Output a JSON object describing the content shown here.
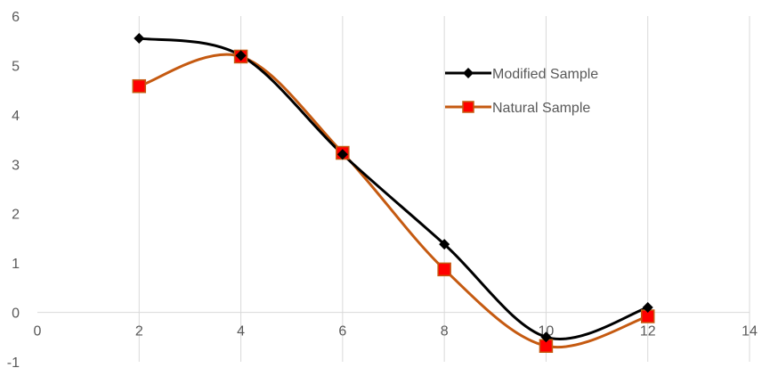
{
  "chart_data": {
    "type": "line",
    "smooth": true,
    "xlim": [
      0,
      14
    ],
    "ylim": [
      -1,
      6
    ],
    "xticks": [
      0,
      2,
      4,
      6,
      8,
      10,
      12,
      14
    ],
    "yticks": [
      -1,
      0,
      1,
      2,
      3,
      4,
      5,
      6
    ],
    "grid": "vertical",
    "legend_position": "top-right",
    "series": [
      {
        "name": "Modified Sample",
        "color": "#000000",
        "marker": "diamond",
        "x": [
          2,
          4,
          6,
          8,
          10,
          12
        ],
        "y": [
          5.55,
          5.2,
          3.2,
          1.38,
          -0.5,
          0.1
        ]
      },
      {
        "name": "Natural Sample",
        "color": "#C55A11",
        "marker_fill": "#FF0000",
        "marker": "square",
        "x": [
          2,
          4,
          6,
          8,
          10,
          12
        ],
        "y": [
          4.58,
          5.18,
          3.23,
          0.87,
          -0.68,
          -0.08
        ]
      }
    ]
  }
}
